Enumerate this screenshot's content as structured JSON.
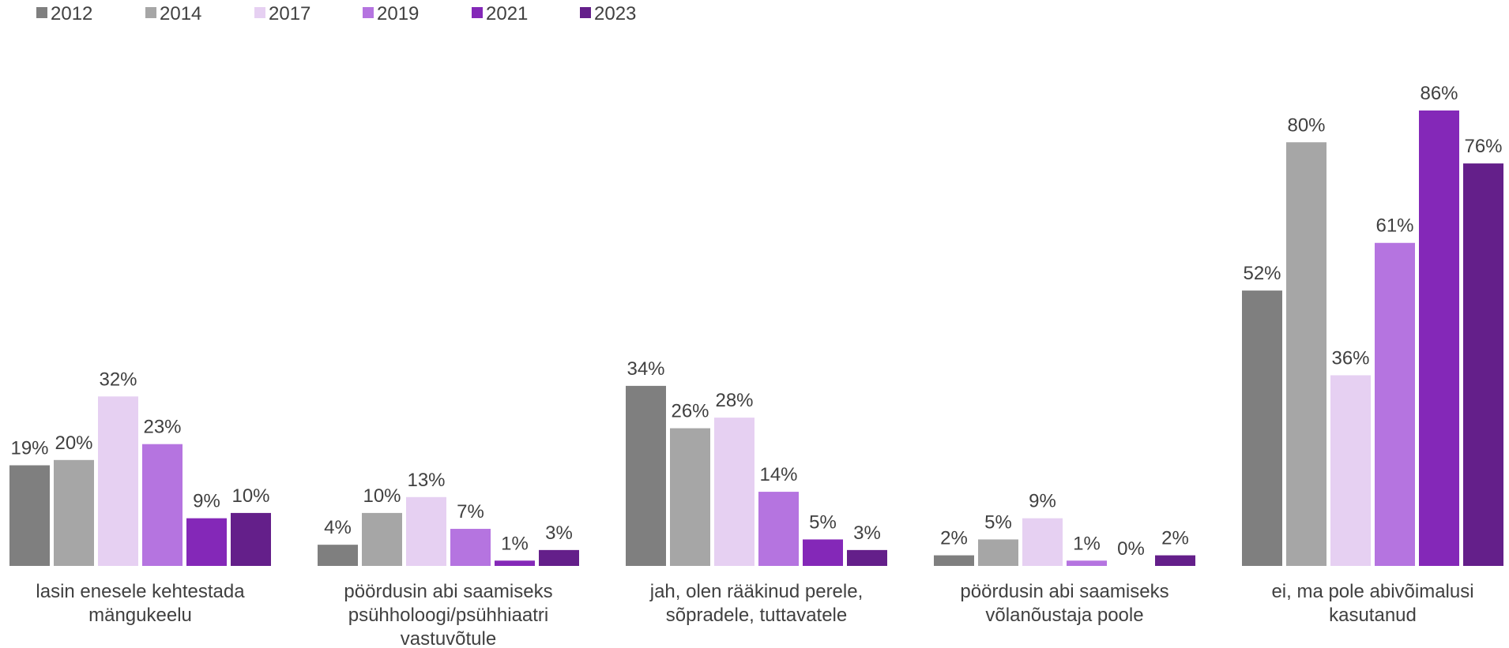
{
  "chart_data": {
    "type": "bar",
    "categories": [
      [
        "lasin enesele kehtestada",
        "mängukeelu"
      ],
      [
        "pöördusin abi saamiseks",
        "psühholoogi/psühhiaatri",
        "vastuvõtule"
      ],
      [
        "jah, olen rääkinud perele,",
        "sõpradele, tuttavatele"
      ],
      [
        "pöördusin abi saamiseks",
        "võlanõustaja poole"
      ],
      [
        "ei, ma pole abivõimalusi",
        "kasutanud"
      ]
    ],
    "series": [
      {
        "name": "2012",
        "color": "#7f7f7f",
        "values": [
          19,
          4,
          34,
          2,
          52
        ]
      },
      {
        "name": "2014",
        "color": "#a6a6a6",
        "values": [
          20,
          10,
          26,
          5,
          80
        ]
      },
      {
        "name": "2017",
        "color": "#e6d0f2",
        "values": [
          32,
          13,
          28,
          9,
          36
        ]
      },
      {
        "name": "2019",
        "color": "#b574e0",
        "values": [
          23,
          7,
          14,
          1,
          61
        ]
      },
      {
        "name": "2021",
        "color": "#8428b8",
        "values": [
          9,
          1,
          5,
          0,
          86
        ]
      },
      {
        "name": "2023",
        "color": "#641f8a",
        "values": [
          10,
          3,
          3,
          2,
          76
        ]
      }
    ],
    "value_suffix": "%",
    "ylim": [
      0,
      86
    ],
    "legend": "top-left",
    "grid": false,
    "title": "",
    "xlabel": "",
    "ylabel": ""
  }
}
